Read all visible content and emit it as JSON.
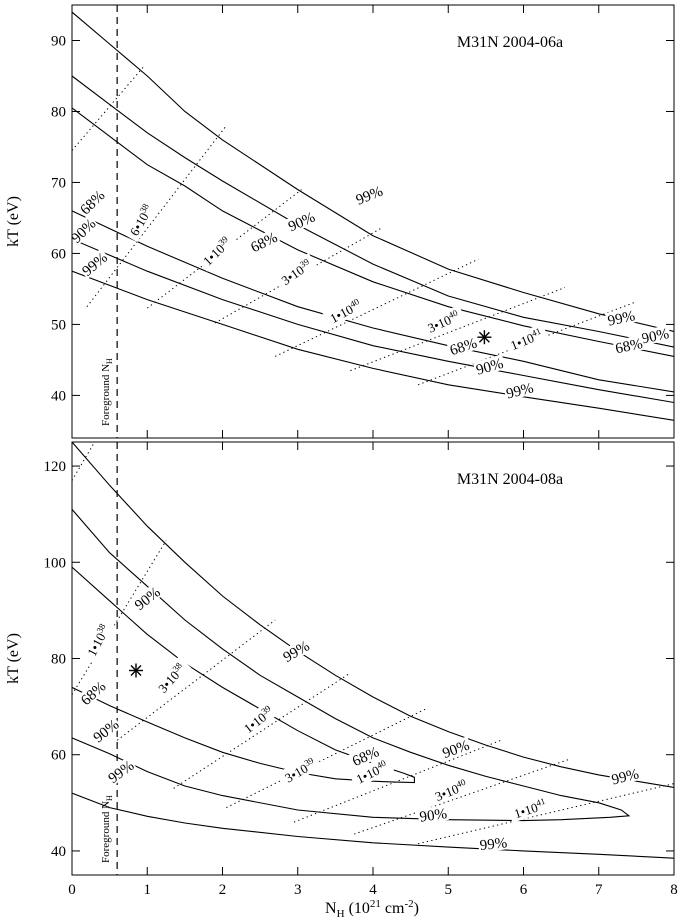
{
  "figure": {
    "xlabel_main": "N",
    "xlabel_sub": "H",
    "xlabel_rest": " (10",
    "xlabel_exp1": "21",
    "xlabel_mid": " cm",
    "xlabel_exp2": "-2",
    "xlabel_end": ")"
  },
  "chart_data": [
    {
      "type": "line",
      "title": "M31N 2004-06a",
      "ylabel": "kT (eV)",
      "xlim": [
        0,
        8
      ],
      "ylim": [
        34,
        95
      ],
      "xticks": [
        0,
        1,
        2,
        3,
        4,
        5,
        6,
        7,
        8
      ],
      "yticks": [
        40,
        50,
        60,
        70,
        80,
        90
      ],
      "foreground_nh": 0.6,
      "foreground_label_main": "Foreground N",
      "foreground_label_sub": "H",
      "best_fit": {
        "x": 5.48,
        "y": 48.2
      },
      "contours": [
        {
          "name": "68%",
          "points": [
            [
              0,
              80.5
            ],
            [
              0.5,
              76.5
            ],
            [
              1,
              72.5
            ],
            [
              1.5,
              69.5
            ],
            [
              2,
              66
            ],
            [
              3,
              60.5
            ],
            [
              4,
              56
            ],
            [
              5,
              52.5
            ],
            [
              6,
              49.8
            ],
            [
              7,
              47.6
            ],
            [
              8,
              45.5
            ]
          ]
        },
        {
          "name": "68%",
          "points": [
            [
              0,
              66
            ],
            [
              0.5,
              63.5
            ],
            [
              1,
              61
            ],
            [
              2,
              56.5
            ],
            [
              3,
              52.5
            ],
            [
              4,
              49.5
            ],
            [
              5,
              47
            ],
            [
              6,
              44.8
            ],
            [
              7,
              42.2
            ],
            [
              8,
              40.5
            ]
          ]
        },
        {
          "name": "90%",
          "points": [
            [
              0,
              85
            ],
            [
              0.5,
              81
            ],
            [
              1,
              77
            ],
            [
              1.5,
              73.5
            ],
            [
              2,
              70.2
            ],
            [
              3,
              64
            ],
            [
              4,
              58.5
            ],
            [
              5,
              54
            ],
            [
              6,
              51
            ],
            [
              7,
              49
            ],
            [
              8,
              46.8
            ]
          ]
        },
        {
          "name": "90%",
          "points": [
            [
              0,
              62
            ],
            [
              1,
              57.5
            ],
            [
              2,
              53.5
            ],
            [
              3,
              50
            ],
            [
              4,
              47
            ],
            [
              5,
              44.8
            ],
            [
              6,
              42.8
            ],
            [
              7,
              40.8
            ],
            [
              8,
              39
            ]
          ]
        },
        {
          "name": "99%",
          "points": [
            [
              0,
              94
            ],
            [
              0.5,
              89.5
            ],
            [
              1,
              85
            ],
            [
              1.5,
              80
            ],
            [
              2,
              76
            ],
            [
              3,
              69
            ],
            [
              4,
              62.5
            ],
            [
              5,
              57.8
            ],
            [
              6,
              54.5
            ],
            [
              7,
              51.5
            ],
            [
              8,
              49
            ]
          ]
        },
        {
          "name": "99%",
          "points": [
            [
              0,
              57.5
            ],
            [
              1,
              53.5
            ],
            [
              2,
              50
            ],
            [
              3,
              46.5
            ],
            [
              4,
              43.8
            ],
            [
              5,
              41.5
            ],
            [
              6,
              39.8
            ],
            [
              7,
              38.2
            ],
            [
              8,
              36.5
            ]
          ]
        }
      ],
      "contour_labels": [
        {
          "text": "99%",
          "x": 3.95,
          "y": 68.2,
          "angle": -22
        },
        {
          "text": "90%",
          "x": 3.05,
          "y": 64.5,
          "angle": -24
        },
        {
          "text": "68%",
          "x": 2.55,
          "y": 61.6,
          "angle": -26
        },
        {
          "text": "68%",
          "x": 0.27,
          "y": 67.2,
          "angle": -44
        },
        {
          "text": "90%",
          "x": 0.15,
          "y": 63.2,
          "angle": -44
        },
        {
          "text": "99%",
          "x": 0.3,
          "y": 58.5,
          "angle": -40
        },
        {
          "text": "68%",
          "x": 5.2,
          "y": 46.9,
          "angle": -18
        },
        {
          "text": "90%",
          "x": 5.55,
          "y": 44.1,
          "angle": -16
        },
        {
          "text": "99%",
          "x": 5.95,
          "y": 40.7,
          "angle": -14
        },
        {
          "text": "99%",
          "x": 7.3,
          "y": 50.9,
          "angle": -12
        },
        {
          "text": "90%",
          "x": 7.75,
          "y": 48.4,
          "angle": -12
        },
        {
          "text": "68%",
          "x": 7.4,
          "y": 47.0,
          "angle": -12
        }
      ],
      "luminosity_lines": [
        {
          "mantissa": "",
          "exponent": "",
          "points": [
            [
              0,
              74.5
            ],
            [
              0.95,
              86.3
            ]
          ]
        },
        {
          "mantissa": "6•10",
          "exponent": "38",
          "points": [
            [
              0.2,
              52.5
            ],
            [
              2.05,
              78
            ]
          ]
        },
        {
          "mantissa": "1•10",
          "exponent": "39",
          "points": [
            [
              1.0,
              52.3
            ],
            [
              3.05,
              69
            ]
          ]
        },
        {
          "mantissa": "3•10",
          "exponent": "39",
          "points": [
            [
              1.9,
              50.2
            ],
            [
              4.1,
              63.5
            ]
          ]
        },
        {
          "mantissa": "1•10",
          "exponent": "40",
          "points": [
            [
              2.7,
              45.5
            ],
            [
              5.4,
              59.2
            ]
          ]
        },
        {
          "mantissa": "3•10",
          "exponent": "40",
          "points": [
            [
              3.7,
              43.5
            ],
            [
              6.55,
              55.2
            ]
          ]
        },
        {
          "mantissa": "1•10",
          "exponent": "41",
          "points": [
            [
              4.6,
              41.5
            ],
            [
              7.5,
              53.2
            ]
          ]
        }
      ],
      "lum_labels": [
        {
          "index": 1,
          "x": 0.95,
          "y": 64.5,
          "angle": -60
        },
        {
          "index": 2,
          "x": 1.95,
          "y": 60.0,
          "angle": -44
        },
        {
          "index": 3,
          "x": 3.0,
          "y": 57.0,
          "angle": -34
        },
        {
          "index": 4,
          "x": 3.65,
          "y": 51.5,
          "angle": -28
        },
        {
          "index": 5,
          "x": 4.95,
          "y": 50.0,
          "angle": -24
        },
        {
          "index": 6,
          "x": 6.05,
          "y": 47.5,
          "angle": -22
        }
      ]
    },
    {
      "type": "line",
      "title": "M31N 2004-08a",
      "ylabel": "kT (eV)",
      "xlabel": "N_H (10^21 cm^-2)",
      "xlim": [
        0,
        8
      ],
      "ylim": [
        35,
        125
      ],
      "xticks": [
        0,
        1,
        2,
        3,
        4,
        5,
        6,
        7,
        8
      ],
      "yticks": [
        40,
        60,
        80,
        100,
        120
      ],
      "foreground_nh": 0.6,
      "foreground_label_main": "Foreground N",
      "foreground_label_sub": "H",
      "best_fit": {
        "x": 0.85,
        "y": 77.5
      },
      "contours": [
        {
          "name": "68%",
          "points": [
            [
              0,
              99
            ],
            [
              0.5,
              92
            ],
            [
              1,
              85
            ],
            [
              1.5,
              79
            ],
            [
              2,
              74
            ],
            [
              2.5,
              69.5
            ],
            [
              3,
              65
            ],
            [
              3.5,
              61
            ],
            [
              4,
              58.2
            ],
            [
              4.4,
              56.2
            ],
            [
              4.55,
              55.3
            ],
            [
              4.55,
              54.2
            ],
            [
              4.3,
              54.3
            ],
            [
              4,
              54.5
            ],
            [
              3.5,
              55
            ],
            [
              3,
              56.3
            ],
            [
              2.5,
              58.2
            ],
            [
              2,
              60.5
            ],
            [
              1.5,
              63.5
            ],
            [
              1,
              66.8
            ],
            [
              0.5,
              70.2
            ],
            [
              0,
              74
            ]
          ]
        },
        {
          "name": "90%",
          "points": [
            [
              0,
              111
            ],
            [
              0.5,
              102
            ],
            [
              1,
              95
            ],
            [
              1.5,
              88
            ],
            [
              2,
              82
            ],
            [
              2.5,
              76.5
            ],
            [
              3,
              72
            ],
            [
              3.5,
              67.5
            ],
            [
              4,
              63.5
            ],
            [
              4.5,
              60.5
            ],
            [
              5,
              57.8
            ],
            [
              5.5,
              55.5
            ],
            [
              6,
              53.5
            ],
            [
              6.5,
              51.5
            ],
            [
              7,
              50
            ],
            [
              7.3,
              48.5
            ],
            [
              7.4,
              47.3
            ],
            [
              7.15,
              47.0
            ],
            [
              6.5,
              46.5
            ],
            [
              6,
              46.3
            ],
            [
              5,
              46.5
            ],
            [
              4,
              47
            ],
            [
              3,
              48.5
            ],
            [
              2,
              51.5
            ],
            [
              1.5,
              53.5
            ],
            [
              1,
              56.5
            ],
            [
              0.5,
              60.2
            ],
            [
              0,
              63.5
            ]
          ]
        },
        {
          "name": "99%",
          "points": [
            [
              0,
              125
            ],
            [
              0.5,
              116
            ],
            [
              1,
              107.5
            ],
            [
              1.5,
              100
            ],
            [
              2,
              93
            ],
            [
              2.5,
              87
            ],
            [
              3,
              81.5
            ],
            [
              3.5,
              76.5
            ],
            [
              4,
              72
            ],
            [
              4.5,
              68
            ],
            [
              5,
              64.8
            ],
            [
              5.5,
              62
            ],
            [
              6,
              59.5
            ],
            [
              6.5,
              57.5
            ],
            [
              7,
              55.8
            ],
            [
              7.5,
              54.5
            ],
            [
              8,
              53.2
            ]
          ]
        },
        {
          "name": "99%",
          "points": [
            [
              0,
              52
            ],
            [
              0.5,
              49
            ],
            [
              1,
              47.2
            ],
            [
              1.5,
              45.8
            ],
            [
              2,
              44.7
            ],
            [
              3,
              43
            ],
            [
              4,
              41.7
            ],
            [
              5,
              40.8
            ],
            [
              6,
              40
            ],
            [
              7,
              39.3
            ],
            [
              8,
              38.5
            ]
          ]
        }
      ],
      "contour_labels": [
        {
          "text": "90%",
          "x": 1.0,
          "y": 92.5,
          "angle": -38
        },
        {
          "text": "99%",
          "x": 2.98,
          "y": 81.5,
          "angle": -30
        },
        {
          "text": "68%",
          "x": 0.28,
          "y": 72.8,
          "angle": -42
        },
        {
          "text": "90%",
          "x": 0.45,
          "y": 65.0,
          "angle": -38
        },
        {
          "text": "99%",
          "x": 0.65,
          "y": 56.5,
          "angle": -36
        },
        {
          "text": "68%",
          "x": 3.9,
          "y": 59.7,
          "angle": -24
        },
        {
          "text": "90%",
          "x": 5.1,
          "y": 61.2,
          "angle": -20
        },
        {
          "text": "90%",
          "x": 4.8,
          "y": 47.5,
          "angle": -8
        },
        {
          "text": "99%",
          "x": 5.6,
          "y": 41.5,
          "angle": -6
        },
        {
          "text": "99%",
          "x": 7.35,
          "y": 55.5,
          "angle": -14
        }
      ],
      "luminosity_lines": [
        {
          "mantissa": "",
          "exponent": "",
          "points": [
            [
              0,
              117
            ],
            [
              0.3,
              125
            ]
          ]
        },
        {
          "mantissa": "1•10",
          "exponent": "38",
          "points": [
            [
              0,
              72.5
            ],
            [
              1.25,
              104.5
            ]
          ]
        },
        {
          "mantissa": "3•10",
          "exponent": "38",
          "points": [
            [
              0.6,
              63
            ],
            [
              2.7,
              88
            ]
          ]
        },
        {
          "mantissa": "1•10",
          "exponent": "39",
          "points": [
            [
              1.35,
              53
            ],
            [
              3.7,
              77
            ]
          ]
        },
        {
          "mantissa": "3•10",
          "exponent": "39",
          "points": [
            [
              2.05,
              49
            ],
            [
              4.7,
              69.5
            ]
          ]
        },
        {
          "mantissa": "1•10",
          "exponent": "40",
          "points": [
            [
              2.95,
              46
            ],
            [
              5.7,
              63
            ]
          ]
        },
        {
          "mantissa": "3•10",
          "exponent": "40",
          "points": [
            [
              3.75,
              43.5
            ],
            [
              6.6,
              59
            ]
          ]
        },
        {
          "mantissa": "1•10",
          "exponent": "41",
          "points": [
            [
              4.6,
              41.5
            ],
            [
              8.0,
              54
            ]
          ]
        }
      ],
      "lum_labels": [
        {
          "index": 1,
          "x": 0.38,
          "y": 83.5,
          "angle": -62
        },
        {
          "index": 2,
          "x": 1.35,
          "y": 75.5,
          "angle": -48
        },
        {
          "index": 3,
          "x": 2.5,
          "y": 66.8,
          "angle": -38
        },
        {
          "index": 4,
          "x": 3.05,
          "y": 56.2,
          "angle": -30
        },
        {
          "index": 5,
          "x": 4.0,
          "y": 55.8,
          "angle": -26
        },
        {
          "index": 6,
          "x": 5.05,
          "y": 52.0,
          "angle": -22
        },
        {
          "index": 7,
          "x": 6.1,
          "y": 48.2,
          "angle": -18
        }
      ]
    }
  ]
}
